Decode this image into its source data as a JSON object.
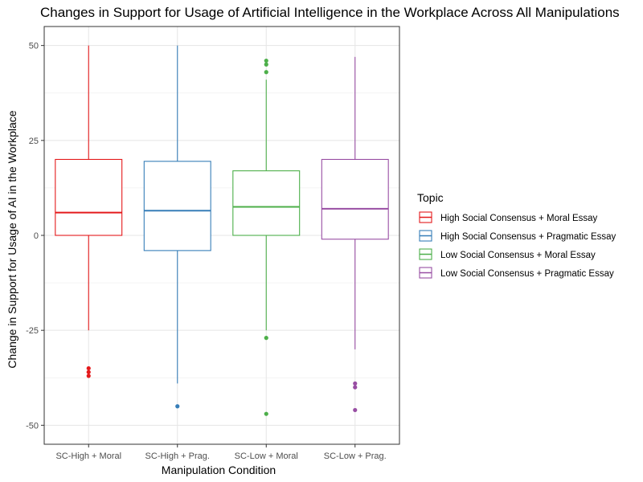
{
  "chart_data": {
    "type": "boxplot",
    "title": "Changes in Support for Usage of Artificial Intelligence in the Workplace Across All Manipulations",
    "xlabel": "Manipulation Condition",
    "ylabel": "Change in Support for Usage of AI in the Workplace",
    "ylim": [
      -55,
      55
    ],
    "yticks": [
      -50,
      -25,
      0,
      25,
      50
    ],
    "grid": true,
    "legend": {
      "title": "Topic",
      "placement": "right",
      "entries": [
        {
          "label": "High Social Consensus + Moral Essay",
          "color": "#E41A1C"
        },
        {
          "label": "High Social Consensus + Pragmatic Essay",
          "color": "#377EB8"
        },
        {
          "label": "Low Social Consensus + Moral Essay",
          "color": "#4DAF4A"
        },
        {
          "label": "Low Social Consensus + Pragmatic Essay",
          "color": "#984EA3"
        }
      ]
    },
    "categories": [
      "SC-High + Moral",
      "SC-High + Prag.",
      "SC-Low + Moral",
      "SC-Low + Prag."
    ],
    "series": [
      {
        "category": "SC-High + Moral",
        "color": "#E41A1C",
        "whisker_low": -25,
        "q1": 0,
        "median": 6,
        "q3": 20,
        "whisker_high": 50,
        "outliers": [
          -35,
          -36,
          -37
        ]
      },
      {
        "category": "SC-High + Prag.",
        "color": "#377EB8",
        "whisker_low": -39,
        "q1": -4,
        "median": 6.5,
        "q3": 19.5,
        "whisker_high": 50,
        "outliers": [
          -45
        ]
      },
      {
        "category": "SC-Low + Moral",
        "color": "#4DAF4A",
        "whisker_low": -25,
        "q1": 0,
        "median": 7.5,
        "q3": 17,
        "whisker_high": 41,
        "outliers": [
          46,
          45,
          43,
          -27,
          -47
        ]
      },
      {
        "category": "SC-Low + Prag.",
        "color": "#984EA3",
        "whisker_low": -30,
        "q1": -1,
        "median": 7,
        "q3": 20,
        "whisker_high": 47,
        "outliers": [
          -39,
          -40,
          -46
        ]
      }
    ]
  }
}
